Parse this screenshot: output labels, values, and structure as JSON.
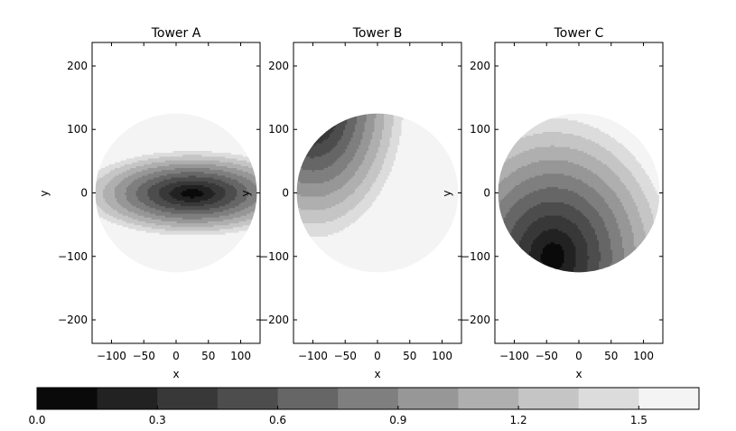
{
  "chart_data": {
    "type": "contourf",
    "panels": [
      {
        "title": "Tower A",
        "xlabel": "x",
        "ylabel": "y",
        "xlim": [
          -130,
          130
        ],
        "ylim": [
          -237,
          237
        ],
        "xticks": [
          -100,
          -50,
          0,
          50,
          100
        ],
        "yticks": [
          -200,
          -100,
          0,
          100,
          200
        ],
        "xtick_labels": [
          "−100",
          "−50",
          "0",
          "50",
          "100"
        ],
        "ytick_labels": [
          "−200",
          "−100",
          "0",
          "100",
          "200"
        ],
        "disk_radius": 125,
        "field": {
          "center": [
            25,
            0
          ],
          "radial_scale": 190,
          "anisotropy": [
            1.0,
            2.6
          ],
          "max_value": 1.65
        }
      },
      {
        "title": "Tower B",
        "xlabel": "x",
        "ylabel": "y",
        "xlim": [
          -130,
          130
        ],
        "ylim": [
          -237,
          237
        ],
        "xticks": [
          -100,
          -50,
          0,
          50,
          100
        ],
        "yticks": [
          -200,
          -100,
          0,
          100,
          200
        ],
        "xtick_labels": [
          "−100",
          "−50",
          "0",
          "50",
          "100"
        ],
        "ytick_labels": [
          "−200",
          "−100",
          "0",
          "100",
          "200"
        ],
        "disk_radius": 125,
        "field": {
          "center": [
            -100,
            140
          ],
          "radial_scale": 230,
          "anisotropy": [
            1.5,
            1.0
          ],
          "max_value": 1.65
        }
      },
      {
        "title": "Tower C",
        "xlabel": "x",
        "ylabel": "y",
        "xlim": [
          -130,
          130
        ],
        "ylim": [
          -237,
          237
        ],
        "xticks": [
          -100,
          -50,
          0,
          50,
          100
        ],
        "yticks": [
          -200,
          -100,
          0,
          100,
          200
        ],
        "xtick_labels": [
          "−100",
          "−50",
          "0",
          "50",
          "100"
        ],
        "ytick_labels": [
          "−200",
          "−100",
          "0",
          "100",
          "200"
        ],
        "disk_radius": 125,
        "field": {
          "center": [
            -40,
            -100
          ],
          "radial_scale": 240,
          "anisotropy": [
            1.2,
            1.0
          ],
          "max_value": 1.65
        }
      }
    ],
    "colorbar": {
      "levels": [
        0.0,
        0.15,
        0.3,
        0.45,
        0.6,
        0.75,
        0.9,
        1.05,
        1.2,
        1.35,
        1.5,
        1.65
      ],
      "colors": [
        "#0a0a0a",
        "#222222",
        "#383838",
        "#4d4d4d",
        "#666666",
        "#7f7f7f",
        "#979797",
        "#afafaf",
        "#c5c5c5",
        "#dcdcdc",
        "#f4f4f4"
      ],
      "tick_values": [
        0.0,
        0.3,
        0.6,
        0.9,
        1.2,
        1.5
      ],
      "tick_labels": [
        "0.0",
        "0.3",
        "0.6",
        "0.9",
        "1.2",
        "1.5"
      ]
    }
  }
}
